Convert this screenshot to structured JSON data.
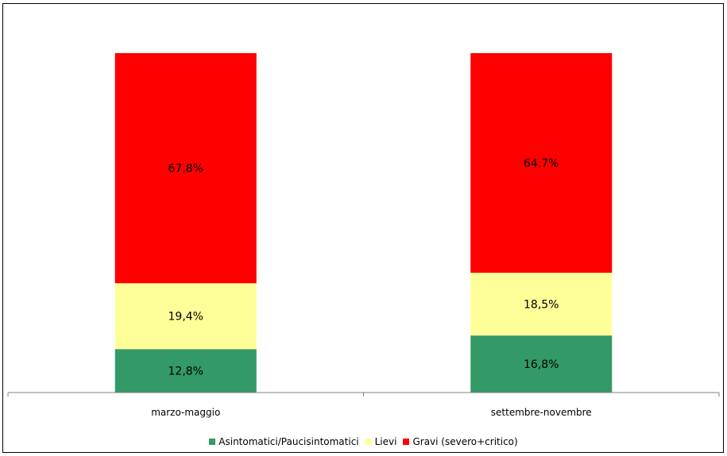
{
  "chart_data": {
    "type": "bar",
    "stacked": true,
    "normalized_percent": true,
    "categories": [
      "marzo-maggio",
      "settembre-novembre"
    ],
    "series": [
      {
        "name": "Asintomatici/Paucisintomatici",
        "values": [
          12.8,
          16.8
        ],
        "labels": [
          "12,8%",
          "16,8%"
        ],
        "color": "#339966"
      },
      {
        "name": "Lievi",
        "values": [
          19.4,
          18.5
        ],
        "labels": [
          "19,4%",
          "18,5%"
        ],
        "color": "#FFFF99"
      },
      {
        "name": "Gravi (severo+critico)",
        "values": [
          67.8,
          64.7
        ],
        "labels": [
          "67,8%",
          "64,7%"
        ],
        "color": "#FF0000"
      }
    ],
    "ylim": [
      0,
      100
    ],
    "grid": false,
    "legend_position": "bottom"
  }
}
